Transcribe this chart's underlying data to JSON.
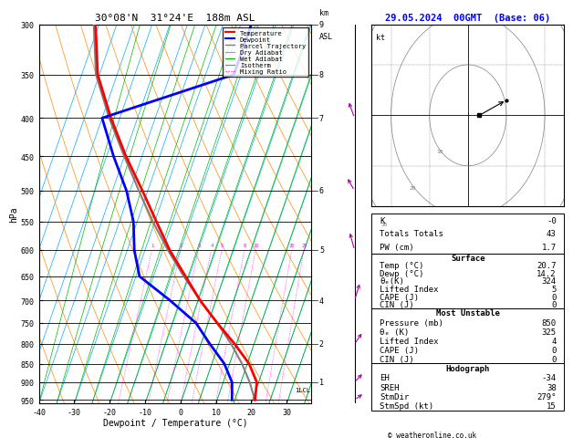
{
  "title_left": "30°08'N  31°24'E  188m ASL",
  "title_right": "29.05.2024  00GMT  (Base: 06)",
  "xlabel": "Dewpoint / Temperature (°C)",
  "ylabel_left": "hPa",
  "temp_color": "#FF0000",
  "dewpoint_color": "#0000FF",
  "parcel_color": "#808080",
  "dry_adiabat_color": "#FF8C00",
  "wet_adiabat_color": "#00BB00",
  "isotherm_color": "#00AAFF",
  "mixing_ratio_color": "#FF00FF",
  "background_color": "#FFFFFF",
  "pmin": 300,
  "pmax": 960,
  "tmin": -40,
  "tmax": 37,
  "skew": 37.0,
  "pressure_levels": [
    300,
    350,
    400,
    450,
    500,
    550,
    600,
    650,
    700,
    750,
    800,
    850,
    900,
    950
  ],
  "temp_profile_T": [
    20.7,
    19.5,
    15.5,
    9.5,
    2.5,
    -4.5,
    -11.0,
    -18.0,
    -24.5,
    -31.5,
    -39.5,
    -47.5,
    -55.5,
    -61.0
  ],
  "temp_profile_P": [
    950,
    900,
    850,
    800,
    750,
    700,
    650,
    600,
    550,
    500,
    450,
    400,
    350,
    300
  ],
  "dewp_profile_T": [
    14.2,
    12.5,
    8.5,
    2.5,
    -3.5,
    -13.0,
    -24.0,
    -28.0,
    -31.0,
    -36.0,
    -43.0,
    -50.0,
    -17.0,
    -17.0
  ],
  "dewp_profile_P": [
    950,
    900,
    850,
    800,
    750,
    700,
    650,
    600,
    550,
    500,
    450,
    400,
    350,
    300
  ],
  "parcel_profile_T": [
    20.7,
    17.5,
    13.5,
    8.5,
    2.5,
    -4.5,
    -11.5,
    -18.5,
    -25.5,
    -32.5,
    -40.0,
    -48.0,
    -56.0,
    -61.5
  ],
  "parcel_profile_P": [
    950,
    900,
    850,
    800,
    750,
    700,
    650,
    600,
    550,
    500,
    450,
    400,
    350,
    300
  ],
  "lcl_pressure": 920,
  "info_K": "-0",
  "info_TT": "43",
  "info_PW": "1.7",
  "surf_temp": "20.7",
  "surf_dewp": "14.2",
  "surf_thetae": "324",
  "surf_li": "5",
  "surf_cape": "0",
  "surf_cin": "0",
  "mu_pressure": "850",
  "mu_thetae": "325",
  "mu_li": "4",
  "mu_cape": "0",
  "mu_cin": "0",
  "hodo_eh": "-34",
  "hodo_sreh": "38",
  "hodo_stmdir": "279°",
  "hodo_stmspd": "15",
  "km_tick_pressures": [
    300,
    350,
    400,
    500,
    600,
    700,
    800,
    900
  ],
  "km_tick_labels": [
    "9",
    "8",
    "7",
    "6",
    "5",
    "4",
    "2",
    "1"
  ],
  "mr_label_pressure": 595,
  "wind_barb_pressures": [
    300,
    400,
    500,
    600,
    700,
    800,
    900,
    950
  ],
  "wind_barb_u": [
    -5,
    -8,
    -10,
    -3,
    2,
    3,
    4,
    3
  ],
  "wind_barb_v": [
    8,
    10,
    8,
    5,
    3,
    2,
    2,
    1
  ]
}
